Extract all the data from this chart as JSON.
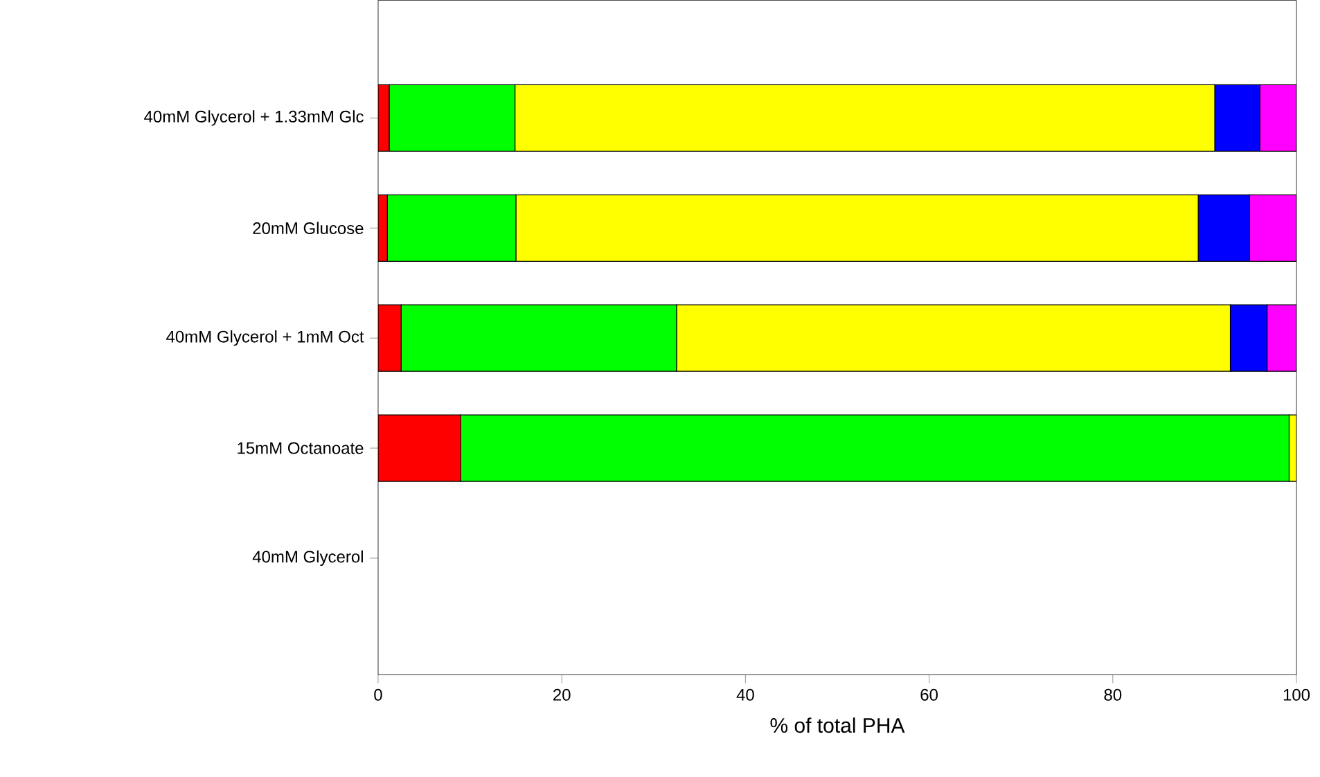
{
  "chart_data": {
    "type": "bar",
    "orientation": "horizontal",
    "stacked": true,
    "xlabel": "% of total PHA",
    "categories": [
      "40mM Glycerol + 1.33mM Glc",
      "20mM Glucose",
      "40mM Glycerol + 1mM Oct",
      "15mM Octanoate",
      "40mM Glycerol"
    ],
    "series": [
      {
        "color": "#ff0000",
        "values": [
          1.2,
          1.0,
          2.5,
          9.0,
          0
        ]
      },
      {
        "color": "#00ff00",
        "values": [
          13.7,
          14.0,
          30.0,
          90.2,
          0
        ]
      },
      {
        "color": "#ffff00",
        "values": [
          76.2,
          74.3,
          60.3,
          0.8,
          0
        ]
      },
      {
        "color": "#0000ff",
        "values": [
          4.9,
          5.6,
          4.0,
          0,
          0
        ]
      },
      {
        "color": "#ff00ff",
        "values": [
          4.0,
          5.1,
          3.2,
          0,
          0
        ]
      }
    ],
    "xlim": [
      0,
      100
    ],
    "xticks": [
      0,
      20,
      40,
      60,
      80,
      100
    ],
    "grid": false
  }
}
